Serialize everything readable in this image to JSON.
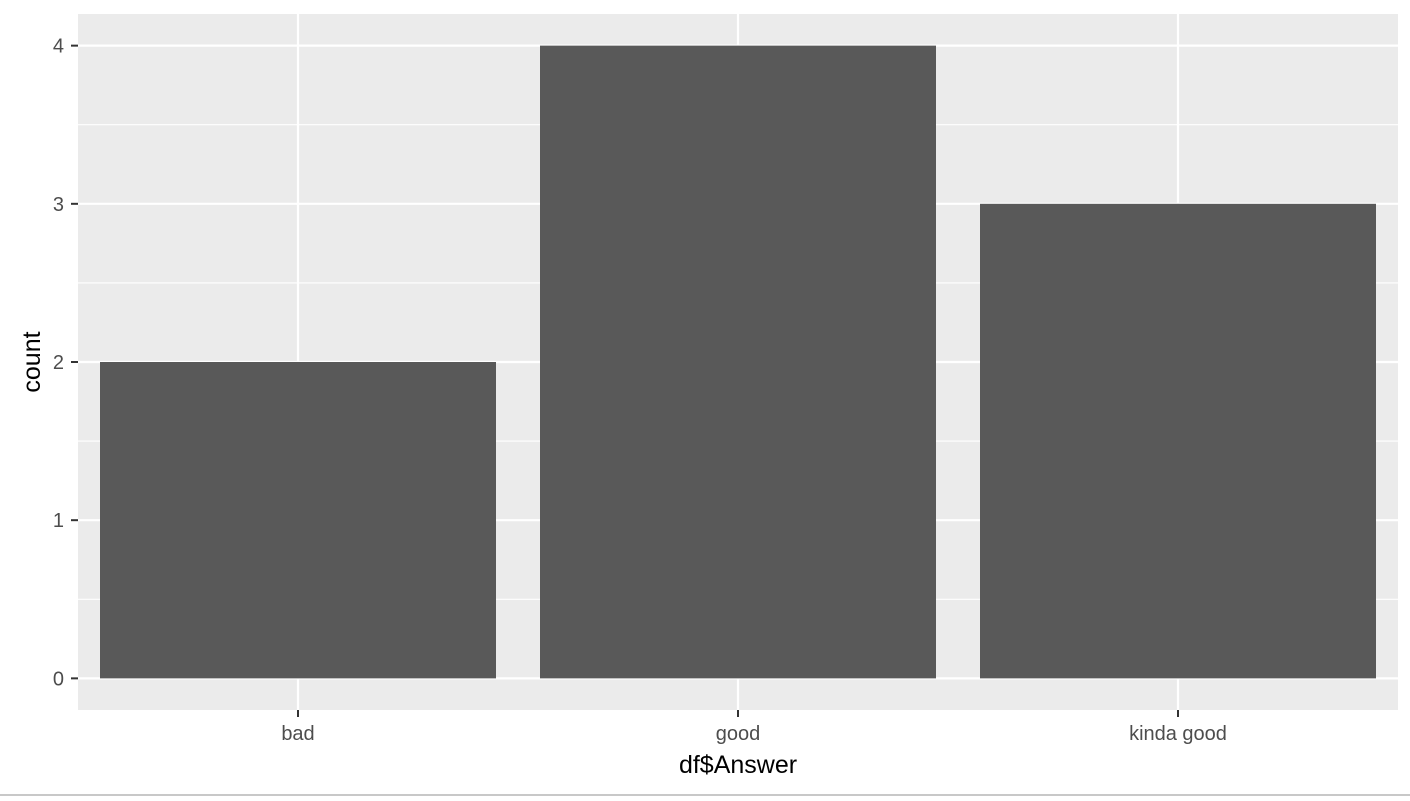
{
  "chart_data": {
    "type": "bar",
    "categories": [
      "bad",
      "good",
      "kinda good"
    ],
    "values": [
      2,
      4,
      3
    ],
    "xlabel": "df$Answer",
    "ylabel": "count",
    "ylim": [
      -0.2,
      4.2
    ],
    "yticks": [
      0,
      1,
      2,
      3,
      4
    ],
    "grid": true,
    "legend": "none",
    "colors": {
      "bar": "#595959",
      "panel": "#ebebeb",
      "grid": "#ffffff",
      "tick_text": "#4d4d4d",
      "axis_title": "#000000",
      "tick_mark": "#333333"
    }
  }
}
